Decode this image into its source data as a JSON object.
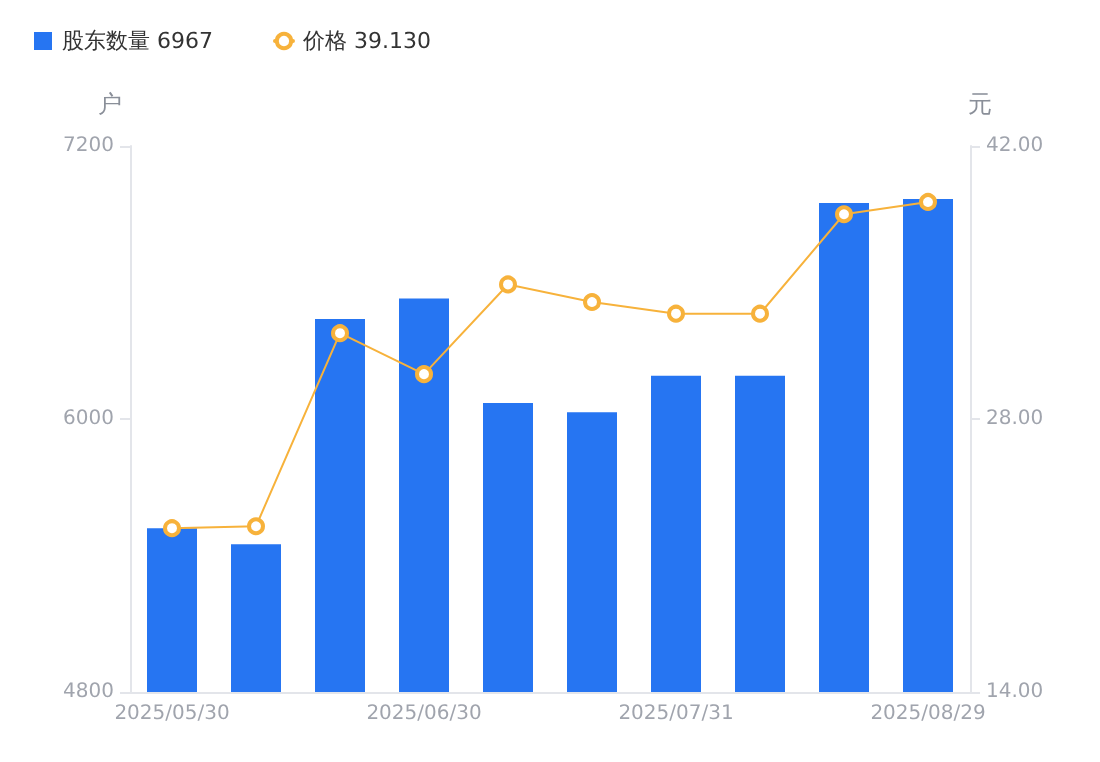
{
  "chart_data": {
    "type": "bar",
    "categories": [
      "2025/05/30",
      null,
      null,
      "2025/06/30",
      null,
      null,
      "2025/07/31",
      null,
      null,
      "2025/08/29"
    ],
    "series": [
      {
        "name": "股东数量 6967",
        "color": "#2675f2",
        "values": [
          5520,
          5450,
          6440,
          6530,
          6070,
          6030,
          6190,
          6190,
          6950,
          6967
        ]
      },
      {
        "name": "价格 39.130",
        "type": "line",
        "axis": "y2",
        "color": "#f7b23b",
        "values": [
          22.4,
          22.5,
          32.4,
          30.3,
          34.9,
          34.0,
          33.4,
          33.4,
          38.5,
          39.13
        ]
      }
    ],
    "ylabel": "户",
    "y2label": "元",
    "ylim": [
      4800,
      7200
    ],
    "yticks": [
      4800,
      6000,
      7200
    ],
    "y2lim": [
      14,
      42
    ],
    "y2ticks": [
      {
        "value": 14,
        "label": "14.00"
      },
      {
        "value": 28,
        "label": "28.00"
      },
      {
        "value": 42,
        "label": "42.00"
      }
    ],
    "grid": false,
    "legend": "top left",
    "marker": "circle",
    "line_style": "solid"
  }
}
